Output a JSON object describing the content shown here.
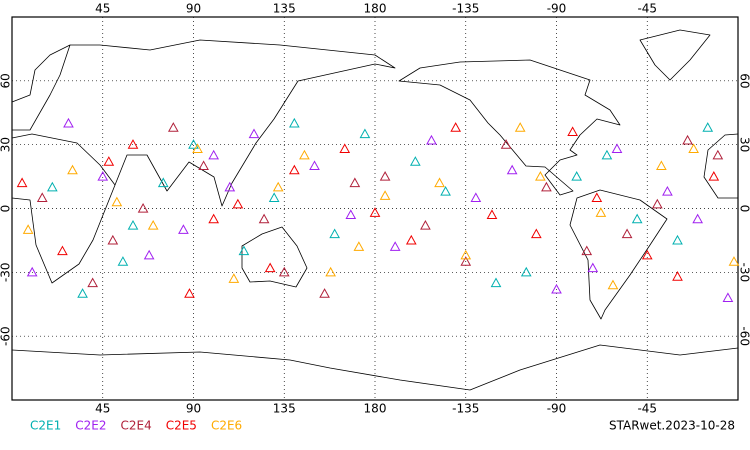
{
  "chart_data": {
    "type": "scatter",
    "marker": "triangle",
    "annotation": "STARwet.2023-10-28",
    "xlim": [
      0,
      360
    ],
    "ylim": [
      -90,
      90
    ],
    "xticks": [
      45,
      90,
      135,
      180,
      {
        "value": 225,
        "label": "-135"
      },
      {
        "value": 270,
        "label": "-90"
      },
      {
        "value": 315,
        "label": "-45"
      }
    ],
    "yticks": [
      -60,
      -30,
      0,
      30,
      60
    ],
    "grid": true,
    "series": [
      {
        "name": "C2E1",
        "color": "#00b0b0",
        "x": [
          20,
          55,
          90,
          130,
          160,
          200,
          240,
          280,
          310,
          345,
          35,
          75,
          115,
          175,
          215,
          255,
          295,
          330,
          140,
          60
        ],
        "values": [
          10,
          -25,
          30,
          5,
          -12,
          22,
          -35,
          15,
          -5,
          38,
          -40,
          12,
          -20,
          35,
          8,
          -30,
          25,
          -15,
          40,
          -8
        ]
      },
      {
        "name": "C2E2",
        "color": "#a020f0",
        "x": [
          10,
          45,
          85,
          120,
          150,
          190,
          230,
          270,
          300,
          340,
          28,
          68,
          108,
          168,
          208,
          248,
          288,
          325,
          355,
          100
        ],
        "values": [
          -30,
          15,
          -10,
          35,
          20,
          -18,
          5,
          -38,
          28,
          -5,
          40,
          -22,
          10,
          -3,
          32,
          18,
          -28,
          8,
          -42,
          25
        ]
      },
      {
        "name": "C2E4",
        "color": "#b0203a",
        "x": [
          15,
          50,
          95,
          135,
          170,
          205,
          245,
          285,
          320,
          350,
          40,
          80,
          125,
          185,
          225,
          265,
          305,
          335,
          155,
          65
        ],
        "values": [
          5,
          -15,
          20,
          -30,
          12,
          -8,
          30,
          -20,
          2,
          25,
          -35,
          38,
          -5,
          15,
          -25,
          10,
          -12,
          32,
          -40,
          0
        ]
      },
      {
        "name": "C2E5",
        "color": "#f00000",
        "x": [
          25,
          60,
          100,
          140,
          180,
          220,
          260,
          290,
          330,
          5,
          48,
          88,
          128,
          165,
          198,
          238,
          278,
          315,
          348,
          112
        ],
        "values": [
          -20,
          30,
          -5,
          18,
          -2,
          38,
          -12,
          5,
          -32,
          12,
          22,
          -40,
          -28,
          28,
          -15,
          -3,
          36,
          -22,
          15,
          2
        ]
      },
      {
        "name": "C2E6",
        "color": "#ffaa00",
        "x": [
          30,
          70,
          110,
          145,
          185,
          225,
          262,
          298,
          338,
          8,
          52,
          92,
          132,
          172,
          212,
          252,
          292,
          322,
          358,
          158
        ],
        "values": [
          18,
          -8,
          -33,
          25,
          6,
          -22,
          15,
          -36,
          28,
          -10,
          3,
          28,
          10,
          -18,
          12,
          38,
          -2,
          20,
          -25,
          -30
        ]
      }
    ]
  }
}
